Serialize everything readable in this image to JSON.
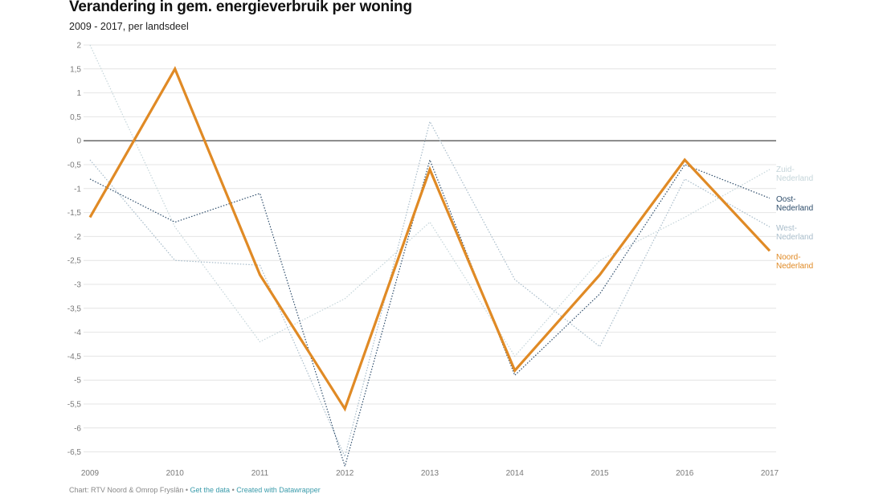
{
  "title": "Verandering in gem. energieverbruik per woning",
  "subtitle": "2009 - 2017, per landsdeel",
  "footer": {
    "source": "Chart: RTV Noord & Omrop Fryslân",
    "sep1": " • ",
    "get_data": "Get the data",
    "sep2": " • ",
    "created_with": "Created with Datawrapper"
  },
  "chart_data": {
    "type": "line",
    "x": [
      "2009",
      "2010",
      "2011",
      "2012",
      "2013",
      "2014",
      "2015",
      "2016",
      "2017"
    ],
    "ylim": [
      -6.75,
      2
    ],
    "yticks": [
      2,
      1.5,
      1,
      0.5,
      0,
      -0.5,
      -1,
      -1.5,
      -2,
      -2.5,
      -3,
      -3.5,
      -4,
      -4.5,
      -5,
      -5.5,
      -6,
      -6.5
    ],
    "ytick_labels": [
      "2",
      "1,5",
      "1",
      "0,5",
      "0",
      "-0,5",
      "-1",
      "-1,5",
      "-2",
      "-2,5",
      "-3",
      "-3,5",
      "-4",
      "-4,5",
      "-5",
      "-5,5",
      "-6",
      "-6,5"
    ],
    "grid": true,
    "zero_line": true,
    "series": [
      {
        "name": "Zuid-Nederland",
        "label_lines": [
          "Zuid-",
          "Nederland"
        ],
        "color": "#c5d5da",
        "style": "dotted",
        "values": [
          2.0,
          -1.8,
          -4.2,
          -3.3,
          -1.7,
          -4.5,
          -2.5,
          -1.6,
          -0.6
        ]
      },
      {
        "name": "West-Nederland",
        "label_lines": [
          "West-",
          "Nederland"
        ],
        "color": "#a8bcca",
        "style": "dotted",
        "values": [
          -0.4,
          -2.5,
          -2.6,
          -6.6,
          0.4,
          -2.9,
          -4.3,
          -0.8,
          -1.8
        ]
      },
      {
        "name": "Oost-Nederland",
        "label_lines": [
          "Oost-",
          "Nederland"
        ],
        "color": "#2e4d6b",
        "style": "dotted",
        "values": [
          -0.8,
          -1.7,
          -1.1,
          -6.8,
          -0.4,
          -4.9,
          -3.2,
          -0.5,
          -1.2
        ]
      },
      {
        "name": "Noord-Nederland",
        "label_lines": [
          "Noord-",
          "Nederland"
        ],
        "color": "#e08a25",
        "style": "solid",
        "values": [
          -1.6,
          1.5,
          -2.8,
          -5.6,
          -0.6,
          -4.8,
          -2.8,
          -0.4,
          -2.3
        ]
      }
    ]
  }
}
